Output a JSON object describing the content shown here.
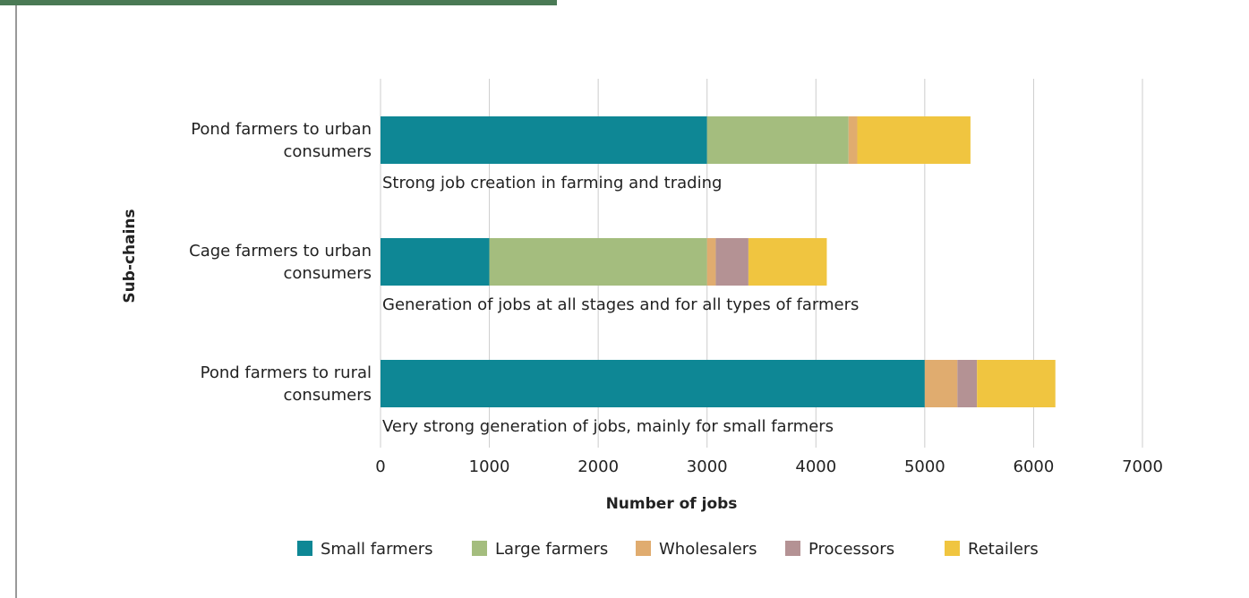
{
  "chart_data": {
    "type": "stacked-barh",
    "categories": [
      "Pond farmers to urban consumers",
      "Cage farmers to urban consumers",
      "Pond farmers to rural consumers"
    ],
    "annotations": [
      "Strong job creation in farming and trading",
      "Generation of jobs at all stages and for all types of farmers",
      "Very strong generation of jobs, mainly for small farmers"
    ],
    "series": [
      {
        "name": "Small farmers",
        "color": "#0e8795",
        "values": [
          3000,
          1000,
          5000
        ]
      },
      {
        "name": "Large farmers",
        "color": "#a4bd7e",
        "values": [
          1300,
          2000,
          0
        ]
      },
      {
        "name": "Wholesalers",
        "color": "#e0ac6f",
        "values": [
          80,
          80,
          300
        ]
      },
      {
        "name": "Processors",
        "color": "#b49294",
        "values": [
          0,
          300,
          180
        ]
      },
      {
        "name": "Retailers",
        "color": "#f0c540",
        "values": [
          1040,
          720,
          720
        ]
      }
    ],
    "xlabel": "Number of jobs",
    "ylabel": "Sub-chains",
    "xlim": [
      0,
      7000
    ],
    "xticks": [
      0,
      1000,
      2000,
      3000,
      4000,
      5000,
      6000,
      7000
    ],
    "grid": true
  }
}
